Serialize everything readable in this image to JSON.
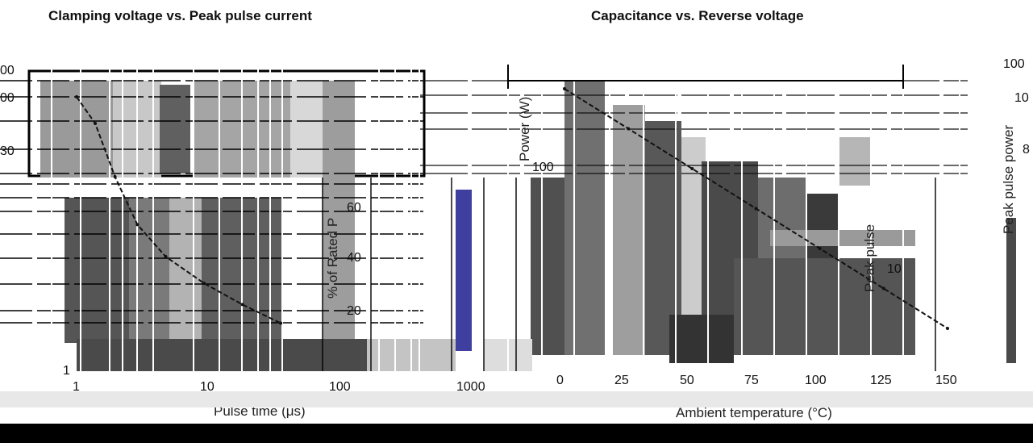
{
  "titles": {
    "left": "Clamping voltage vs. Peak pulse current",
    "right": "Capacitance vs. Reverse voltage"
  },
  "chart_data": [
    {
      "type": "line",
      "title": "",
      "xlabel": "Pulse time (μs)",
      "ylabel": "",
      "x_ticks": [
        "1",
        "10",
        "100",
        "1000"
      ],
      "y_ticks_left": [
        "1"
      ],
      "xscale": "log",
      "xlim": [
        1,
        1000
      ],
      "series": [
        {
          "x": [
            1,
            1.4,
            2,
            3,
            5,
            10,
            20,
            40
          ],
          "y": [
            100,
            90,
            70,
            52,
            40,
            30,
            22,
            15
          ]
        }
      ]
    },
    {
      "type": "line",
      "title": "",
      "xlabel": "Ambient temperature (°C)",
      "ylabel": "% of Rated P",
      "x_ticks": [
        "0",
        "25",
        "50",
        "75",
        "100",
        "125",
        "150"
      ],
      "y_ticks": [
        "20",
        "40",
        "60",
        "100"
      ],
      "xlim": [
        0,
        150
      ],
      "ylim": [
        0,
        100
      ],
      "series": [
        {
          "x": [
            0,
            25,
            50,
            75,
            100,
            125,
            150
          ],
          "y": [
            100,
            85,
            70,
            55,
            40,
            25,
            10
          ]
        }
      ]
    }
  ],
  "fragments": {
    "left_axis_partial": [
      "00",
      "00",
      "30"
    ],
    "right_axis_partial": [
      "100",
      "10",
      "8"
    ],
    "power_label": "Peak pulse power",
    "power_tick": "100",
    "power_ylabel": "Power (W)",
    "pulse_label": "Peak pulse",
    "pulse_tick": "10",
    "rated_label": "% of Rated P"
  }
}
